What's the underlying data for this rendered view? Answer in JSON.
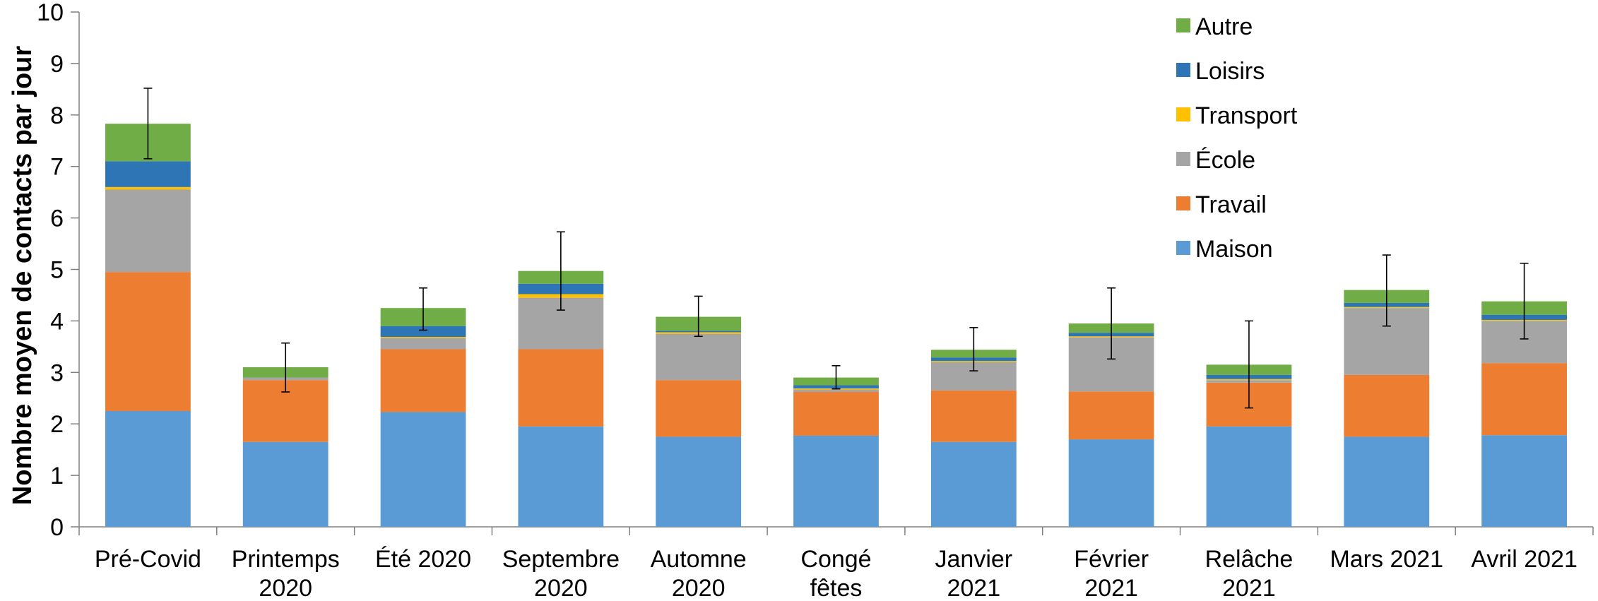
{
  "chart_data": {
    "type": "bar",
    "stacked": true,
    "title": "",
    "xlabel": "",
    "ylabel": "Nombre moyen de contacts par jour",
    "ylim": [
      0,
      10
    ],
    "yticks": [
      0,
      1,
      2,
      3,
      4,
      5,
      6,
      7,
      8,
      9,
      10
    ],
    "grid": false,
    "legend_position": "top-right",
    "categories": [
      [
        "Pré-Covid"
      ],
      [
        "Printemps",
        "2020"
      ],
      [
        "Été 2020"
      ],
      [
        "Septembre",
        "2020"
      ],
      [
        "Automne",
        "2020"
      ],
      [
        "Congé",
        "fêtes"
      ],
      [
        "Janvier",
        "2021"
      ],
      [
        "Février",
        "2021"
      ],
      [
        "Relâche",
        "2021"
      ],
      [
        "Mars 2021"
      ],
      [
        "Avril 2021"
      ]
    ],
    "series": [
      {
        "name": "Maison",
        "color": "#5B9BD5",
        "values": [
          2.25,
          1.65,
          2.23,
          1.95,
          1.75,
          1.77,
          1.65,
          1.7,
          1.95,
          1.75,
          1.78
        ]
      },
      {
        "name": "Travail",
        "color": "#ED7D31",
        "values": [
          2.7,
          1.2,
          1.22,
          1.5,
          1.1,
          0.85,
          1.0,
          0.93,
          0.85,
          1.2,
          1.4
        ]
      },
      {
        "name": "École",
        "color": "#A5A5A5",
        "values": [
          1.6,
          0.05,
          0.22,
          1.0,
          0.9,
          0.05,
          0.55,
          1.05,
          0.05,
          1.3,
          0.82
        ]
      },
      {
        "name": "Transport",
        "color": "#FFC000",
        "values": [
          0.05,
          0.0,
          0.02,
          0.07,
          0.03,
          0.02,
          0.02,
          0.02,
          0.02,
          0.02,
          0.02
        ]
      },
      {
        "name": "Loisirs",
        "color": "#2E75B6",
        "values": [
          0.5,
          0.0,
          0.21,
          0.2,
          0.03,
          0.06,
          0.07,
          0.07,
          0.08,
          0.08,
          0.1
        ]
      },
      {
        "name": "Autre",
        "color": "#70AD47",
        "values": [
          0.73,
          0.2,
          0.35,
          0.25,
          0.27,
          0.15,
          0.15,
          0.18,
          0.2,
          0.25,
          0.26
        ]
      }
    ],
    "error_bars": [
      {
        "low": 7.15,
        "high": 8.52
      },
      {
        "low": 2.62,
        "high": 3.57
      },
      {
        "low": 3.82,
        "high": 4.64
      },
      {
        "low": 4.21,
        "high": 5.73
      },
      {
        "low": 3.7,
        "high": 4.48
      },
      {
        "low": 2.68,
        "high": 3.13
      },
      {
        "low": 3.03,
        "high": 3.87
      },
      {
        "low": 3.26,
        "high": 4.64
      },
      {
        "low": 2.31,
        "high": 4.0
      },
      {
        "low": 3.9,
        "high": 5.28
      },
      {
        "low": 3.65,
        "high": 5.12
      }
    ],
    "legend_order": [
      "Autre",
      "Loisirs",
      "Transport",
      "École",
      "Travail",
      "Maison"
    ]
  }
}
